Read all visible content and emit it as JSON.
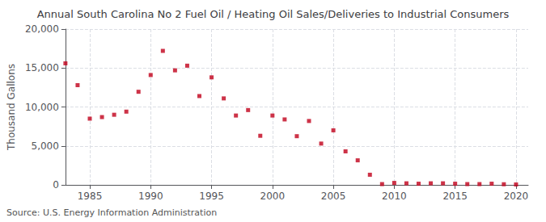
{
  "chart_data": {
    "type": "scatter",
    "title": "Annual South Carolina No 2 Fuel Oil / Heating Oil Sales/Deliveries to Industrial Consumers",
    "ylabel": "Thousand Gallons",
    "annotation": "Source: U.S. Energy Information Administration",
    "color": "#c0001a",
    "marker": "square",
    "x": [
      1983,
      1984,
      1985,
      1986,
      1987,
      1988,
      1989,
      1990,
      1991,
      1992,
      1993,
      1994,
      1995,
      1996,
      1997,
      1998,
      1999,
      2000,
      2001,
      2002,
      2003,
      2004,
      2005,
      2006,
      2007,
      2008,
      2009,
      2010,
      2011,
      2012,
      2013,
      2014,
      2015,
      2016,
      2017,
      2018,
      2019,
      2020
    ],
    "values": [
      15600,
      12800,
      8500,
      8700,
      9000,
      9400,
      11950,
      14100,
      17200,
      14700,
      15300,
      11400,
      13800,
      11100,
      8900,
      9600,
      6300,
      8900,
      8400,
      6250,
      8200,
      5300,
      7000,
      4300,
      3150,
      1300,
      100,
      250,
      200,
      150,
      200,
      200,
      150,
      100,
      100,
      150,
      80,
      50
    ],
    "xlim": [
      1983,
      2021
    ],
    "xticks": [
      1985,
      1990,
      1995,
      2000,
      2005,
      2010,
      2015,
      2020
    ],
    "ylim": [
      0,
      20000
    ],
    "yticks": [
      0,
      {
        "value": 5000,
        "label": "5,000"
      },
      {
        "value": 10000,
        "label": "10,000"
      },
      {
        "value": 15000,
        "label": "15,000"
      },
      {
        "value": 20000,
        "label": "20,000"
      }
    ],
    "grid": true
  }
}
